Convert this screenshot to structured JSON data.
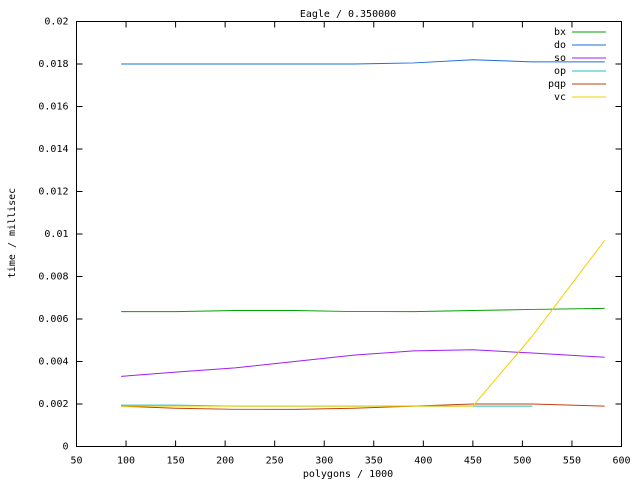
{
  "chart_data": {
    "type": "line",
    "title": "Eagle / 0.350000",
    "x_label": "polygons / 1000",
    "y_label": "time / millisec",
    "x": [
      95,
      150,
      210,
      270,
      330,
      390,
      450,
      510,
      583
    ],
    "xlim": [
      50,
      600
    ],
    "xticks": [
      50,
      100,
      150,
      200,
      250,
      300,
      350,
      400,
      450,
      500,
      550,
      600
    ],
    "ylim": [
      0,
      0.02
    ],
    "yticks": [
      0,
      0.002,
      0.004,
      0.006,
      0.008,
      0.01,
      0.012,
      0.014,
      0.016,
      0.018,
      0.02
    ],
    "legend": "top-right",
    "series": [
      {
        "name": "bx",
        "color": "#00a000",
        "values": [
          0.00635,
          0.00635,
          0.0064,
          0.0064,
          0.00635,
          0.00635,
          0.0064,
          0.00645,
          0.0065
        ]
      },
      {
        "name": "do",
        "color": "#1c6fd8",
        "values": [
          0.018,
          0.018,
          0.018,
          0.018,
          0.018,
          0.01805,
          0.0182,
          0.0181,
          0.0181
        ]
      },
      {
        "name": "so",
        "color": "#a020f0",
        "values": [
          0.0033,
          0.0035,
          0.0037,
          0.004,
          0.0043,
          0.0045,
          0.00455,
          0.0044,
          0.0042
        ]
      },
      {
        "name": "op",
        "color": "#20c0c0",
        "values": [
          0.00195,
          0.00195,
          0.0019,
          0.0019,
          0.0019,
          0.0019,
          0.0019,
          0.0019,
          null
        ]
      },
      {
        "name": "pqp",
        "color": "#c04010",
        "values": [
          0.0019,
          0.0018,
          0.00175,
          0.00175,
          0.0018,
          0.0019,
          0.002,
          0.002,
          0.0019
        ]
      },
      {
        "name": "vc",
        "color": "#f0d000",
        "values": [
          0.0019,
          0.0019,
          0.0019,
          0.0019,
          0.0019,
          0.0019,
          0.0019,
          0.0052,
          0.0097
        ]
      }
    ]
  }
}
